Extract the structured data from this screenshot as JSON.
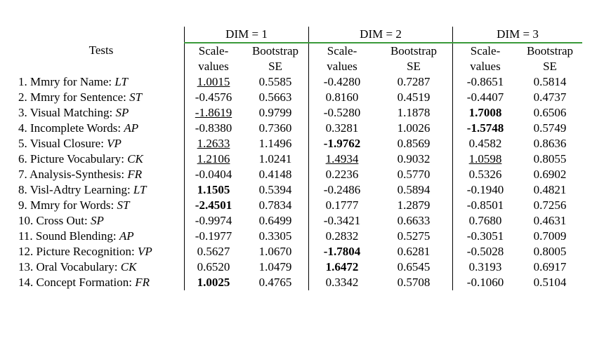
{
  "header": {
    "tests_label": "Tests",
    "dims": [
      "DIM = 1",
      "DIM = 2",
      "DIM = 3"
    ],
    "scale_label_1": "Scale-",
    "scale_label_2": "values",
    "boot_label_1": "Bootstrap",
    "boot_label_2": "SE"
  },
  "rows": [
    {
      "name": "1. Mmry for Name: ",
      "code": "LT",
      "vals": [
        "1.0015",
        "0.5585",
        "-0.4280",
        "0.7287",
        "-0.8651",
        "0.5814"
      ],
      "fmt": [
        "u",
        "",
        "",
        "",
        "",
        ""
      ]
    },
    {
      "name": "2. Mmry for Sentence: ",
      "code": "ST",
      "vals": [
        "-0.4576",
        "0.5663",
        "0.8160",
        "0.4519",
        "-0.4407",
        "0.4737"
      ],
      "fmt": [
        "",
        "",
        "",
        "",
        "",
        ""
      ]
    },
    {
      "name": "3. Visual Matching: ",
      "code": "SP",
      "vals": [
        "-1.8619",
        "0.9799",
        "-0.5280",
        "1.1878",
        "1.7008",
        "0.6506"
      ],
      "fmt": [
        "u",
        "",
        "",
        "",
        "b",
        ""
      ]
    },
    {
      "name": "4. Incomplete Words: ",
      "code": "AP",
      "vals": [
        "-0.8380",
        "0.7360",
        "0.3281",
        "1.0026",
        "-1.5748",
        "0.5749"
      ],
      "fmt": [
        "",
        "",
        "",
        "",
        "b",
        ""
      ]
    },
    {
      "name": "5. Visual Closure: ",
      "code": "VP",
      "vals": [
        "1.2633",
        "1.1496",
        "-1.9762",
        "0.8569",
        "0.4582",
        "0.8636"
      ],
      "fmt": [
        "u",
        "",
        "b",
        "",
        "",
        ""
      ]
    },
    {
      "name": "6. Picture Vocabulary: ",
      "code": "CK",
      "vals": [
        "1.2106",
        "1.0241",
        "1.4934",
        "0.9032",
        "1.0598",
        "0.8055"
      ],
      "fmt": [
        "u",
        "",
        "u",
        "",
        "u",
        ""
      ]
    },
    {
      "name": "7. Analysis-Synthesis: ",
      "code": "FR",
      "vals": [
        "-0.0404",
        "0.4148",
        "0.2236",
        "0.5770",
        "0.5326",
        "0.6902"
      ],
      "fmt": [
        "",
        "",
        "",
        "",
        "",
        ""
      ]
    },
    {
      "name": "8. Visl-Adtry Learning: ",
      "code": "LT",
      "vals": [
        "1.1505",
        "0.5394",
        "-0.2486",
        "0.5894",
        "-0.1940",
        "0.4821"
      ],
      "fmt": [
        "b",
        "",
        "",
        "",
        "",
        ""
      ]
    },
    {
      "name": "9. Mmry for Words: ",
      "code": "ST",
      "vals": [
        "-2.4501",
        "0.7834",
        "0.1777",
        "1.2879",
        "-0.8501",
        "0.7256"
      ],
      "fmt": [
        "b",
        "",
        "",
        "",
        "",
        ""
      ]
    },
    {
      "name": "10. Cross Out: ",
      "code": "SP",
      "vals": [
        "-0.9974",
        "0.6499",
        "-0.3421",
        "0.6633",
        "0.7680",
        "0.4631"
      ],
      "fmt": [
        "",
        "",
        "",
        "",
        "",
        ""
      ]
    },
    {
      "name": "11. Sound Blending: ",
      "code": "AP",
      "vals": [
        "-0.1977",
        "0.3305",
        "0.2832",
        "0.5275",
        "-0.3051",
        "0.7009"
      ],
      "fmt": [
        "",
        "",
        "",
        "",
        "",
        ""
      ]
    },
    {
      "name": "12. Picture Recognition: ",
      "code": "VP",
      "vals": [
        "0.5627",
        "1.0670",
        "-1.7804",
        "0.6281",
        "-0.5028",
        "0.8005"
      ],
      "fmt": [
        "",
        "",
        "b",
        "",
        "",
        ""
      ]
    },
    {
      "name": "13. Oral Vocabulary: ",
      "code": "CK",
      "vals": [
        "0.6520",
        "1.0479",
        "1.6472",
        "0.6545",
        "0.3193",
        "0.6917"
      ],
      "fmt": [
        "",
        "",
        "b",
        "",
        "",
        ""
      ]
    },
    {
      "name": "14. Concept Formation: ",
      "code": "FR",
      "vals": [
        "1.0025",
        "0.4765",
        "0.3342",
        "0.5708",
        "-0.1060",
        "0.5104"
      ],
      "fmt": [
        "b",
        "",
        "",
        "",
        "",
        ""
      ]
    }
  ]
}
